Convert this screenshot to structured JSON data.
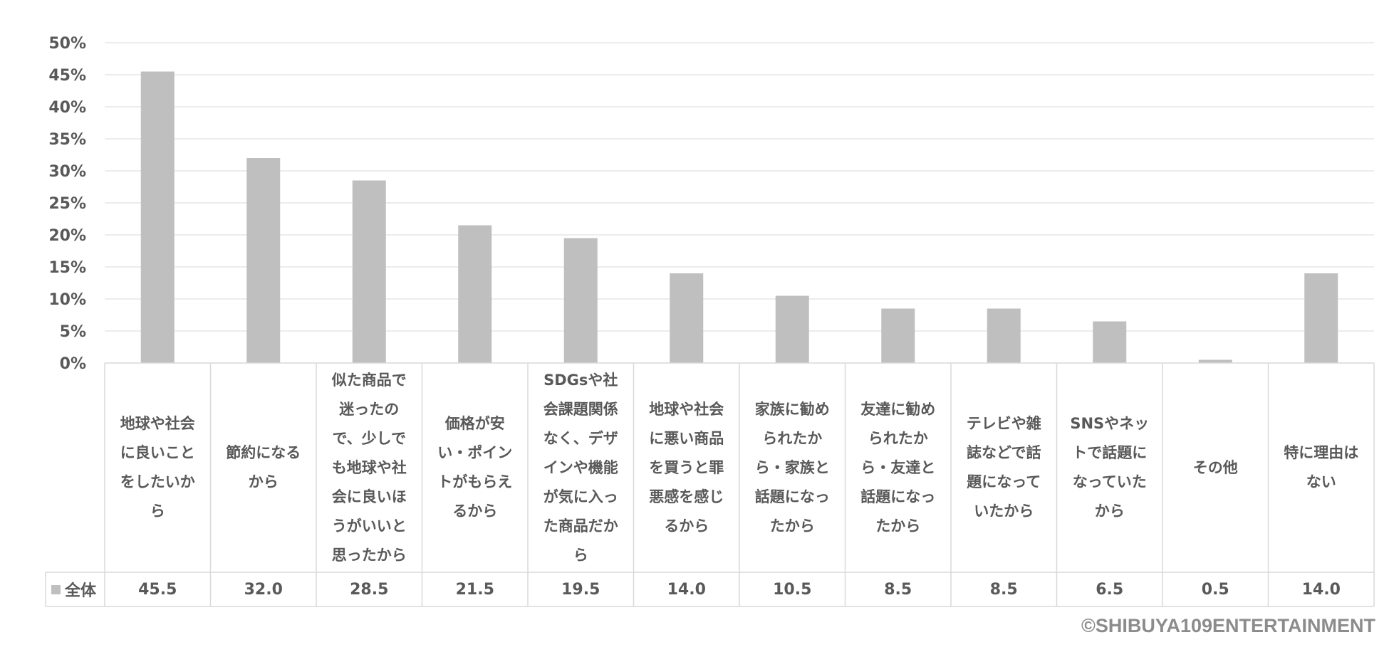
{
  "chart_data": {
    "type": "bar",
    "title": "",
    "xlabel": "",
    "ylabel": "",
    "ylim": [
      0,
      50
    ],
    "y_tick_step": 5,
    "y_tick_format": "percent",
    "grid": true,
    "bar_color": "#bfbfbf",
    "gridline_color": "#d9d9d9",
    "categories": [
      "地球や社会に良いことをしたいから",
      "節約になるから",
      "似た商品で迷ったので、少しでも地球や社会に良いほうがいいと思ったから",
      "価格が安い・ポイントがもらえるから",
      "SDGsや社会課題関係なく、デザインや機能が気に入った商品だから",
      "地球や社会に悪い商品を買うと罪悪感を感じるから",
      "家族に勧められたから・家族と話題になったから",
      "友達に勧められたから・友達と話題になったから",
      "テレビや雑誌などで話題になっていたから",
      "SNSやネットで話題になっていたから",
      "その他",
      "特に理由はない"
    ],
    "category_lines": [
      [
        "地球や社会",
        "に良いこと",
        "をしたいか",
        "ら"
      ],
      [
        "節約になる",
        "から"
      ],
      [
        "似た商品で",
        "迷ったの",
        "で、少しで",
        "も地球や社",
        "会に良いほ",
        "うがいいと",
        "思ったから"
      ],
      [
        "価格が安",
        "い・ポイン",
        "トがもらえ",
        "るから"
      ],
      [
        "SDGsや社",
        "会課題関係",
        "なく、デザ",
        "インや機能",
        "が気に入っ",
        "た商品だか",
        "ら"
      ],
      [
        "地球や社会",
        "に悪い商品",
        "を買うと罪",
        "悪感を感じ",
        "るから"
      ],
      [
        "家族に勧め",
        "られたか",
        "ら・家族と",
        "話題になっ",
        "たから"
      ],
      [
        "友達に勧め",
        "られたか",
        "ら・友達と",
        "話題になっ",
        "たから"
      ],
      [
        "テレビや雑",
        "誌などで話",
        "題になって",
        "いたから"
      ],
      [
        "SNSやネッ",
        "トで話題に",
        "なっていた",
        "から"
      ],
      [
        "その他"
      ],
      [
        "特に理由は",
        "ない"
      ]
    ],
    "series": [
      {
        "name": "全体",
        "values": [
          45.5,
          32.0,
          28.5,
          21.5,
          19.5,
          14.0,
          10.5,
          8.5,
          8.5,
          6.5,
          0.5,
          14.0
        ],
        "labels": [
          "45.5",
          "32.0",
          "28.5",
          "21.5",
          "19.5",
          "14.0",
          "10.5",
          "8.5",
          "8.5",
          "6.5",
          "0.5",
          "14.0"
        ]
      }
    ]
  },
  "footer": {
    "copyright": "©SHIBUYA109ENTERTAINMENT"
  }
}
